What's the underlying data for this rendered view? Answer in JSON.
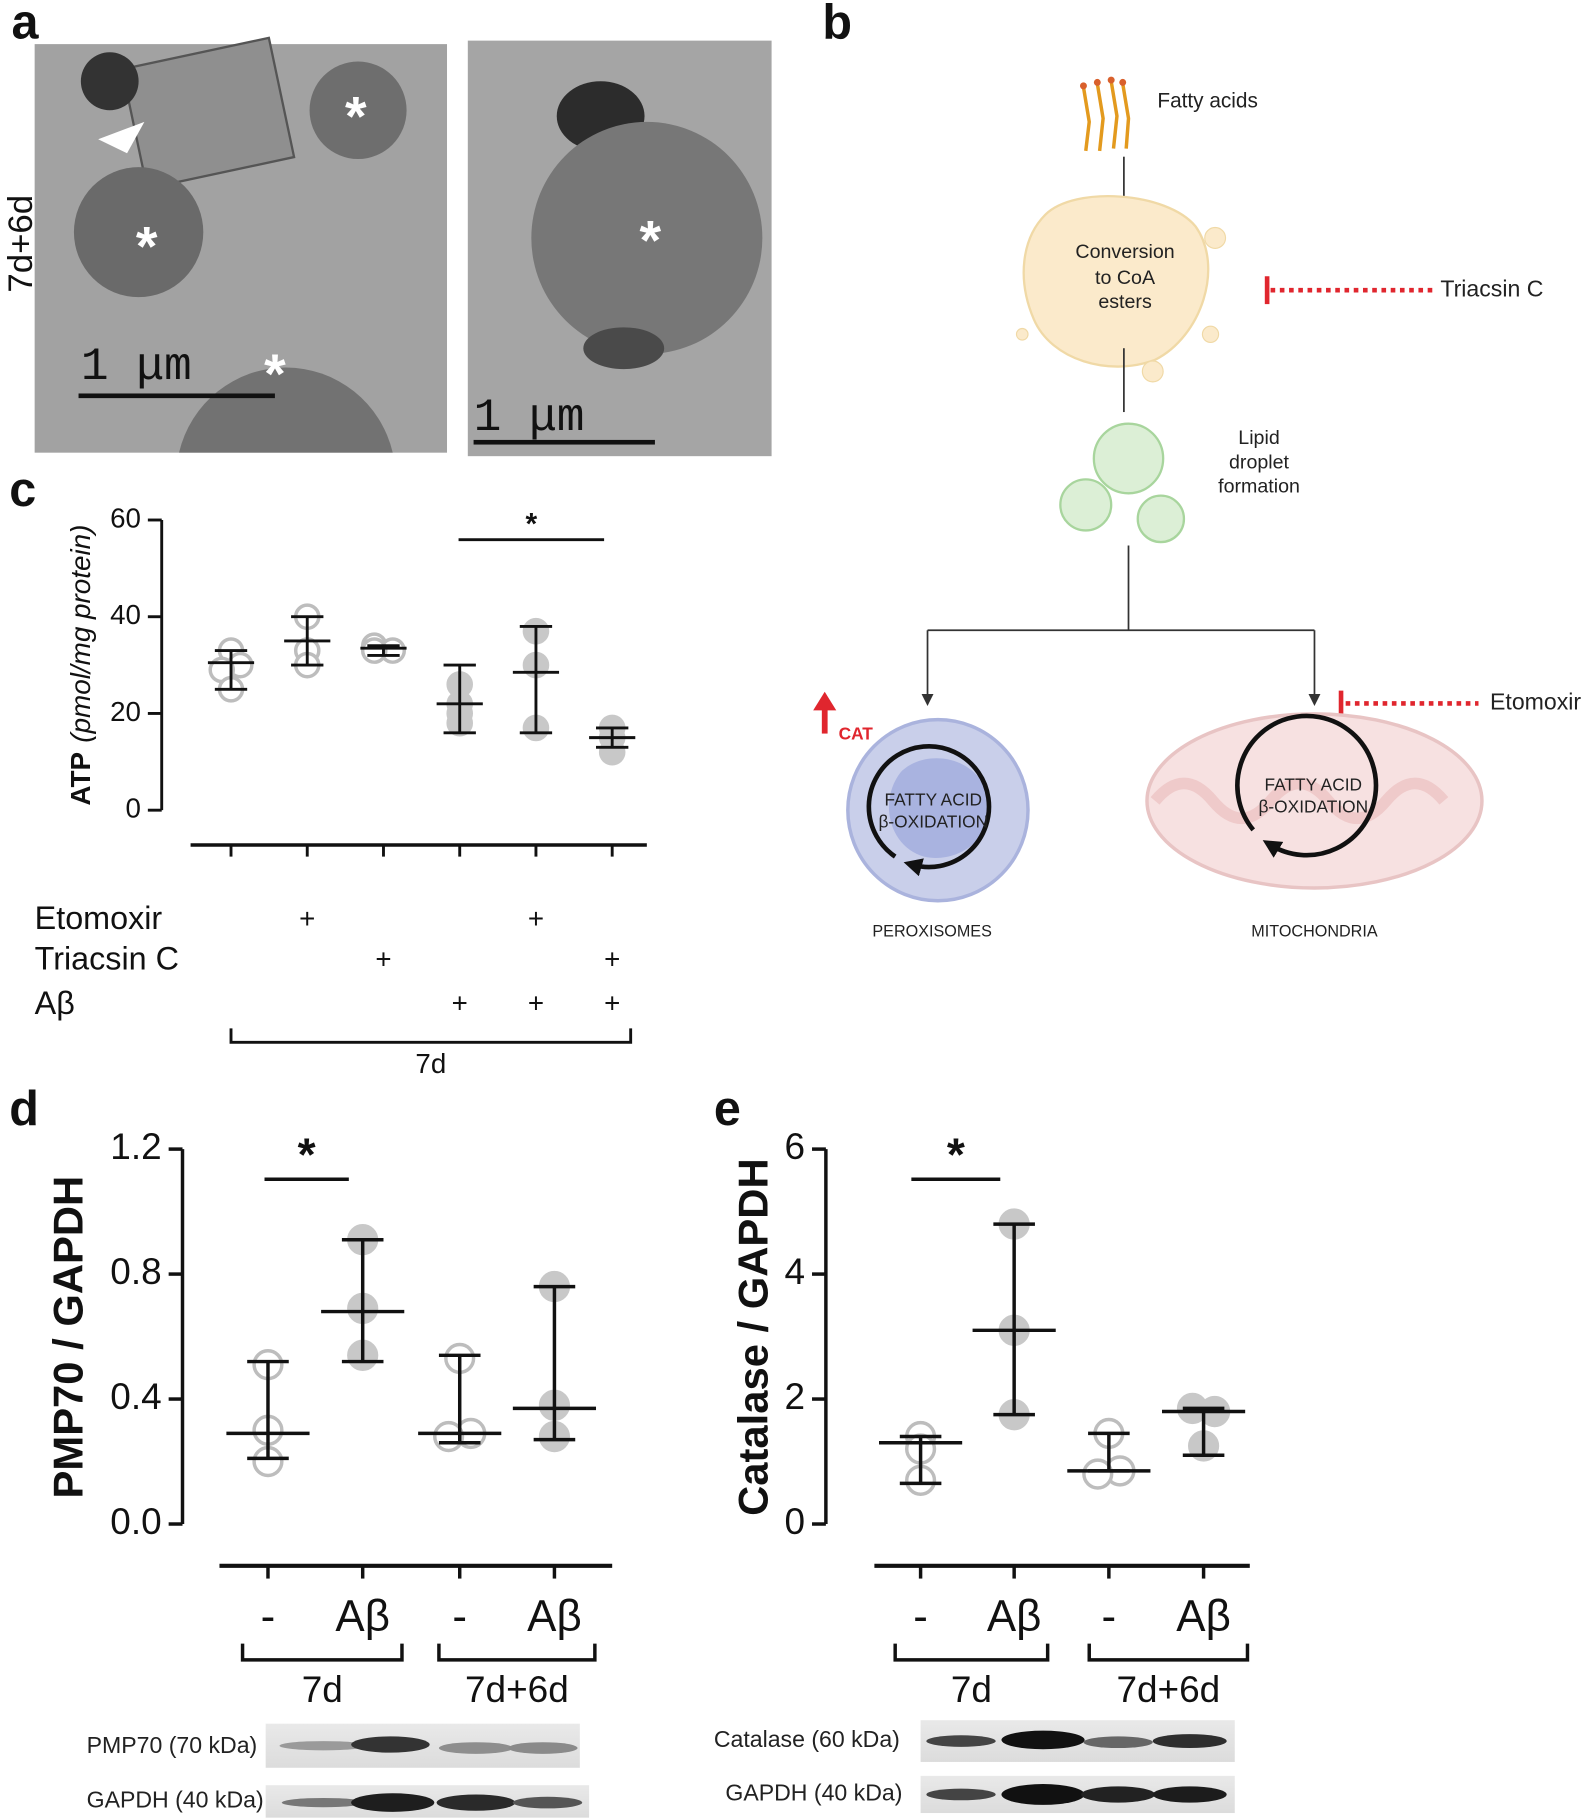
{
  "panel_labels": [
    "a",
    "b",
    "c",
    "d",
    "e"
  ],
  "micrographs": {
    "condition": "7d+6d",
    "scale_bars": [
      "1 μm",
      "1 μm"
    ],
    "markers": [
      "*",
      "*",
      "*",
      "*"
    ]
  },
  "diagram": {
    "fatty_acids": "Fatty acids",
    "conversion": [
      "Conversion",
      "to CoA",
      "esters"
    ],
    "inhibitor_1": "Triacsin C",
    "lipid_droplet": [
      "Lipid",
      "droplet",
      "formation"
    ],
    "inhibitor_2": "Etomoxir",
    "upregulated": "CAT",
    "peroxisome_process": [
      "FATTY ACID",
      "β-OXIDATION"
    ],
    "mitochondria_process": [
      "FATTY ACID",
      "β-OXIDATION"
    ],
    "peroxisomes": "PEROXISOMES",
    "mitochondria": "MITOCHONDRIA"
  },
  "chart_data": [
    {
      "type": "dot",
      "ylabel": "ATP",
      "ylabel_unit": "(pmol/mg protein)",
      "ylim": [
        0,
        60
      ],
      "yticks": [
        0,
        20,
        40,
        60
      ],
      "groups": [
        {
          "style": "open",
          "points": [
            33,
            30,
            29,
            25
          ],
          "center": 30.5,
          "low": 25,
          "high": 33
        },
        {
          "style": "open",
          "points": [
            40,
            33,
            30
          ],
          "center": 35,
          "low": 30,
          "high": 40
        },
        {
          "style": "open",
          "points": [
            34,
            33,
            33
          ],
          "center": 33.5,
          "low": 32,
          "high": 34
        },
        {
          "style": "filled",
          "points": [
            26,
            22,
            20,
            18
          ],
          "center": 22,
          "low": 16,
          "high": 30
        },
        {
          "style": "filled",
          "points": [
            37,
            30,
            17
          ],
          "center": 28.5,
          "low": 16,
          "high": 38
        },
        {
          "style": "filled",
          "points": [
            17,
            15,
            12
          ],
          "center": 15,
          "low": 13,
          "high": 17
        }
      ],
      "significance": "*",
      "treatments": [
        {
          "name": "Etomoxir",
          "marks": [
            null,
            "+",
            null,
            null,
            "+",
            null
          ]
        },
        {
          "name": "Triacsin C",
          "marks": [
            null,
            null,
            "+",
            null,
            null,
            "+"
          ]
        },
        {
          "name": "Aβ",
          "marks": [
            null,
            null,
            null,
            "+",
            "+",
            "+"
          ]
        }
      ],
      "timepoint": "7d"
    },
    {
      "type": "dot",
      "ylabel": "PMP70 / GAPDH",
      "ylim": [
        0,
        1.2
      ],
      "yticks": [
        {
          "value": 0,
          "label": "0.0"
        },
        0.4,
        0.8,
        1.2
      ],
      "categories": [
        "-",
        "Aβ",
        "-",
        "Aβ"
      ],
      "group_labels": [
        "7d",
        "7d+6d"
      ],
      "groups": [
        {
          "style": "open",
          "points": [
            0.51,
            0.3,
            0.2
          ],
          "center": 0.29,
          "low": 0.21,
          "high": 0.52
        },
        {
          "style": "filled",
          "points": [
            0.91,
            0.69,
            0.54
          ],
          "center": 0.68,
          "low": 0.52,
          "high": 0.91
        },
        {
          "style": "open",
          "points": [
            0.53,
            0.29,
            0.28
          ],
          "center": 0.29,
          "low": 0.26,
          "high": 0.54
        },
        {
          "style": "filled",
          "points": [
            0.76,
            0.38,
            0.28
          ],
          "center": 0.37,
          "low": 0.27,
          "high": 0.76
        }
      ],
      "significance": "*",
      "blots": [
        "PMP70 (70 kDa)",
        "GAPDH (40 kDa)"
      ]
    },
    {
      "type": "dot",
      "ylabel": "Catalase / GAPDH",
      "ylim": [
        0,
        6
      ],
      "yticks": [
        0,
        2,
        4,
        6
      ],
      "categories": [
        "-",
        "Aβ",
        "-",
        "Aβ"
      ],
      "group_labels": [
        "7d",
        "7d+6d"
      ],
      "groups": [
        {
          "style": "open",
          "points": [
            1.4,
            1.2,
            0.7
          ],
          "center": 1.3,
          "low": 0.65,
          "high": 1.4
        },
        {
          "style": "filled",
          "points": [
            4.8,
            3.1,
            1.75
          ],
          "center": 3.1,
          "low": 1.75,
          "high": 4.8
        },
        {
          "style": "open",
          "points": [
            1.45,
            0.85,
            0.8
          ],
          "center": 0.85,
          "low": 0.85,
          "high": 1.45
        },
        {
          "style": "filled",
          "points": [
            1.85,
            1.8,
            1.25
          ],
          "center": 1.8,
          "low": 1.1,
          "high": 1.85
        }
      ],
      "significance": "*",
      "blots": [
        "Catalase (60 kDa)",
        "GAPDH (40 kDa)"
      ]
    }
  ]
}
